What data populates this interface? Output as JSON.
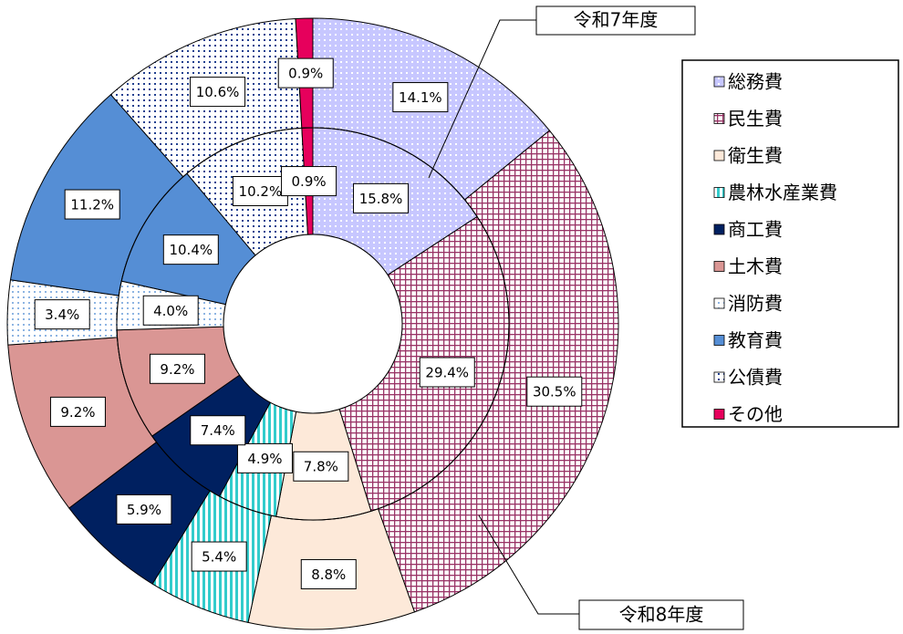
{
  "chart_data": {
    "type": "donut",
    "categories": [
      "総務費",
      "民生費",
      "衛生費",
      "農林水産業費",
      "商工費",
      "土木費",
      "消防費",
      "教育費",
      "公債費",
      "その他"
    ],
    "colors": [
      "#9999ff",
      "#993366",
      "#fde9d9",
      "#33cccc",
      "#002060",
      "#da9694",
      "#8db4e2",
      "#558ed5",
      "#1f3f8f",
      "#e6005c"
    ],
    "patterns": [
      "dots",
      "grid",
      "solid",
      "vstripes",
      "solid",
      "solid",
      "dots",
      "solid",
      "dots",
      "solid"
    ],
    "series": [
      {
        "name": "令和8年度",
        "values": [
          14.1,
          30.5,
          8.8,
          5.4,
          5.9,
          9.2,
          3.4,
          11.2,
          10.6,
          0.9
        ],
        "value_labels": [
          "14.1%",
          "30.5%",
          "8.8%",
          "5.4%",
          "5.9%",
          "9.2%",
          "3.4%",
          "11.2%",
          "10.6%",
          "0.9%"
        ]
      },
      {
        "name": "令和7年度",
        "values": [
          15.8,
          29.4,
          7.8,
          4.9,
          7.4,
          9.2,
          4.0,
          10.4,
          10.2,
          0.9
        ],
        "value_labels": [
          "15.8%",
          "29.4%",
          "7.8%",
          "4.9%",
          "7.4%",
          "9.2%",
          "4.0%",
          "10.4%",
          "10.2%",
          "0.9%"
        ]
      }
    ]
  }
}
